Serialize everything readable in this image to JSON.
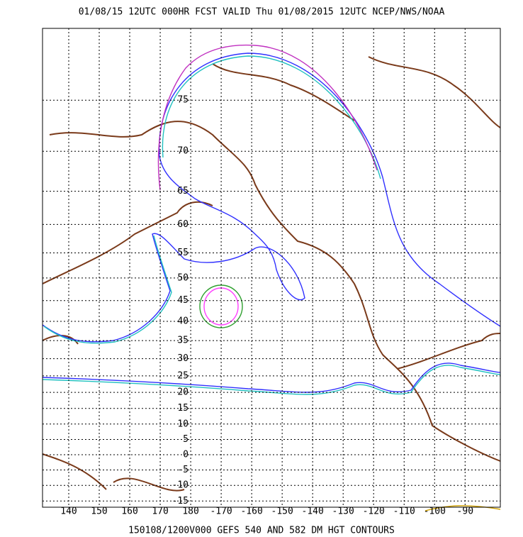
{
  "header": "01/08/15 12UTC   000HR  FCST VALID Thu 01/08/2015 12UTC  NCEP/NWS/NOAA",
  "latitudes": [
    75,
    70,
    65,
    60,
    55,
    50,
    45,
    40,
    35,
    30,
    25,
    20,
    15,
    10,
    5,
    0,
    -5,
    -10,
    -15
  ],
  "longitudes": [
    140,
    150,
    160,
    170,
    180,
    -170,
    -160,
    -150,
    -140,
    -130,
    -120,
    -110,
    -100,
    -90
  ],
  "footer": "150108/1200V000 GEFS 540 AND 582 DM HGT CONTOURS"
}
